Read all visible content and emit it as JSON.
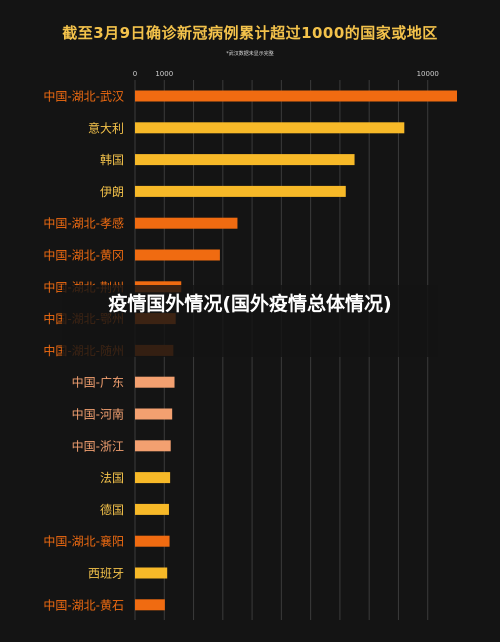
{
  "chart_data": {
    "type": "bar",
    "title": "截至3月9日确诊新冠病例累计超过1000的国家或地区",
    "subtitle": "*武汉数据未显示完整",
    "xlim": [
      0,
      11000
    ],
    "xticks": [
      0,
      1000,
      10000
    ],
    "grid": true,
    "categories": [
      "中国-湖北-武汉",
      "意大利",
      "韩国",
      "伊朗",
      "中国-湖北-孝感",
      "中国-湖北-黄冈",
      "中国-湖北-荆州",
      "中国-湖北-鄂州",
      "中国-湖北-随州",
      "中国-广东",
      "中国-河南",
      "中国-浙江",
      "法国",
      "德国",
      "中国-湖北-襄阳",
      "西班牙",
      "中国-湖北-黄石"
    ],
    "values": [
      11000,
      9200,
      7500,
      7200,
      3500,
      2900,
      1580,
      1390,
      1310,
      1350,
      1270,
      1220,
      1200,
      1160,
      1180,
      1100,
      1020
    ],
    "colors": [
      "#f06b11",
      "#f7b928",
      "#f7b928",
      "#f7b928",
      "#f06b11",
      "#f06b11",
      "#f06b11",
      "#f06b11",
      "#c9540f",
      "#f3a070",
      "#f3a070",
      "#f3a070",
      "#f7b928",
      "#f7b928",
      "#f06b11",
      "#f7b928",
      "#f06b11"
    ],
    "label_colors": [
      "#f06b11",
      "#f2c14a",
      "#f2c14a",
      "#f2c14a",
      "#f06b11",
      "#f06b11",
      "#f06b11",
      "#f06b11",
      "#f06b11",
      "#f2a070",
      "#f2a070",
      "#f2a070",
      "#f2c14a",
      "#f2c14a",
      "#f06b11",
      "#f2c14a",
      "#f06b11"
    ]
  },
  "overlay": {
    "title": "疫情国外情况(国外疫情总体情况)"
  }
}
